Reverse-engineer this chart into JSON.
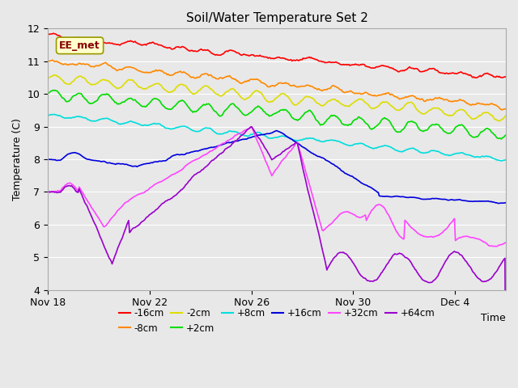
{
  "title": "Soil/Water Temperature Set 2",
  "xlabel": "Time",
  "ylabel": "Temperature (C)",
  "ylim": [
    4.0,
    12.0
  ],
  "yticks": [
    4.0,
    5.0,
    6.0,
    7.0,
    8.0,
    9.0,
    10.0,
    11.0,
    12.0
  ],
  "background_color": "#e8e8e8",
  "plot_bg_color": "#e8e8e8",
  "grid_color": "#ffffff",
  "annotation_text": "EE_met",
  "annotation_bg": "#ffffcc",
  "annotation_border": "#999900",
  "series": [
    {
      "label": "-16cm",
      "color": "#ff0000"
    },
    {
      "label": "-8cm",
      "color": "#ff8800"
    },
    {
      "label": "-2cm",
      "color": "#dddd00"
    },
    {
      "label": "+2cm",
      "color": "#00dd00"
    },
    {
      "label": "+8cm",
      "color": "#00dddd"
    },
    {
      "label": "+16cm",
      "color": "#0000dd"
    },
    {
      "label": "+32cm",
      "color": "#ff44ff"
    },
    {
      "label": "+64cm",
      "color": "#9900cc"
    }
  ],
  "xtick_labels": [
    "Nov 18",
    "Nov 22",
    "Nov 26",
    "Nov 30",
    "Dec 4"
  ],
  "xtick_positions": [
    0,
    4,
    8,
    12,
    16
  ]
}
